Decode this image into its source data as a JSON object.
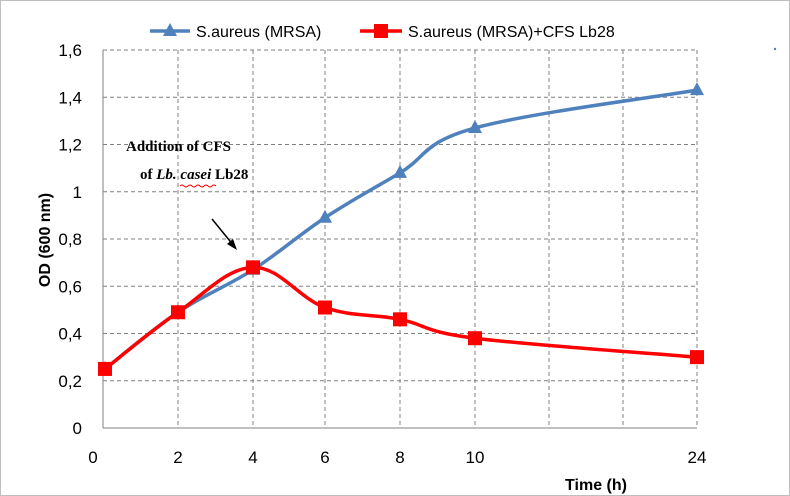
{
  "chart_data": {
    "type": "line",
    "x": [
      0,
      2,
      4,
      6,
      8,
      10,
      24
    ],
    "x_tick_labels": [
      "0",
      "2",
      "4",
      "6",
      "8",
      "10",
      "24"
    ],
    "y_tick_labels": [
      "0",
      "0,2",
      "0,4",
      "0,6",
      "0,8",
      "1",
      "1,2",
      "1,4",
      "1,6"
    ],
    "ylim": [
      0,
      1.6
    ],
    "xlabel": "Time (h)",
    "ylabel": "OD (600 nm)",
    "grid": true,
    "legend_position": "top",
    "series": [
      {
        "name": "S.aureus (MRSA)",
        "color": "#4f81bd",
        "marker": "triangle",
        "values": [
          0.25,
          0.49,
          0.67,
          0.89,
          1.08,
          1.27,
          1.43
        ]
      },
      {
        "name": "S.aureus (MRSA)+CFS Lb28",
        "color": "#ff0000",
        "marker": "square",
        "values": [
          0.25,
          0.49,
          0.68,
          0.51,
          0.46,
          0.38,
          0.3
        ]
      }
    ],
    "annotation": {
      "line1": "Addition of CFS",
      "line2_prefix": "of ",
      "line2_italic": "Lb. casei",
      "line2_suffix": " Lb28"
    }
  }
}
